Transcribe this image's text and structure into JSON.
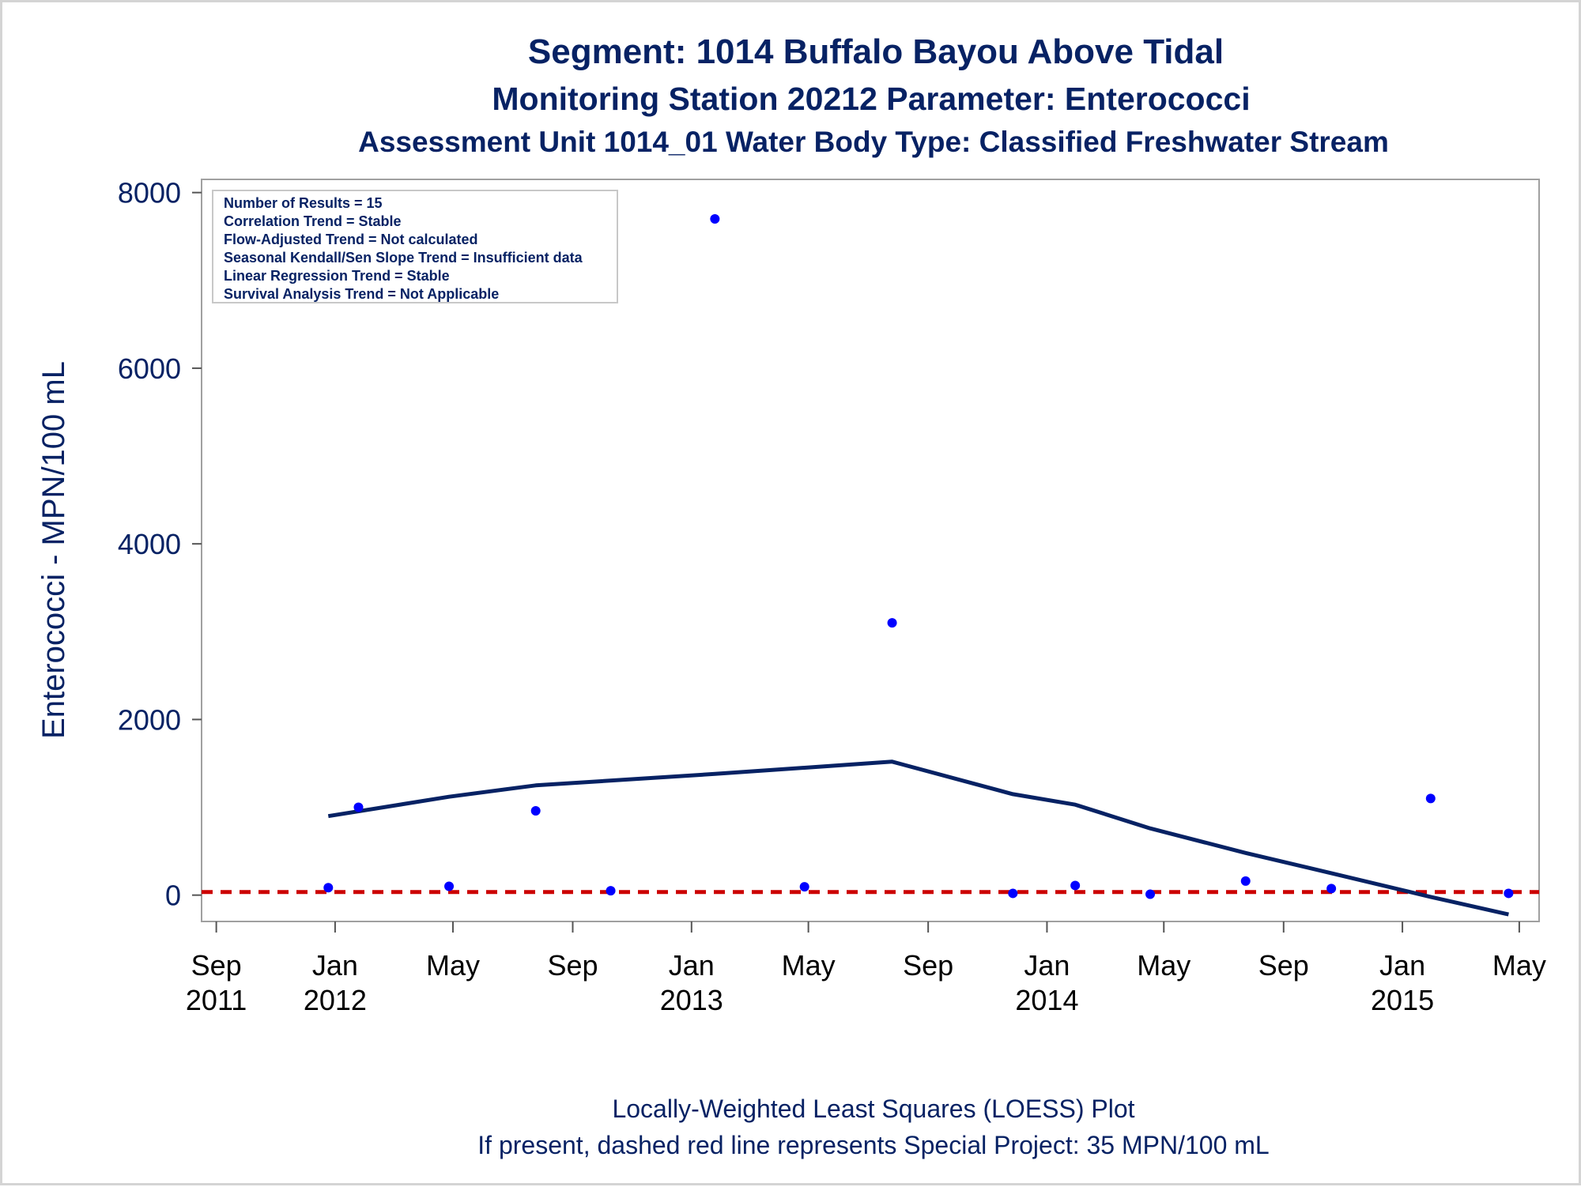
{
  "titles": {
    "line1": "Segment: 1014  Buffalo Bayou Above Tidal",
    "line2": "Monitoring Station 20212 Parameter: Enterococci",
    "line3": "Assessment Unit 1014_01   Water Body Type: Classified Freshwater Stream"
  },
  "stats_box": {
    "lines": [
      "Number of Results = 15",
      "Correlation Trend = Stable",
      "Flow-Adjusted Trend = Not calculated",
      "Seasonal Kendall/Sen Slope Trend = Insufficient data",
      "Linear Regression Trend = Stable",
      "Survival Analysis Trend = Not Applicable"
    ]
  },
  "footer": {
    "line1": "Locally-Weighted Least Squares (LOESS) Plot",
    "line2": "If present, dashed red line represents Special Project: 35 MPN/100 mL"
  },
  "colors": {
    "title": "#072264",
    "points": "#0000ff",
    "loess_line": "#072264",
    "reference_line": "#cc0000",
    "frame": "#a0a0a0"
  },
  "chart_data": {
    "type": "scatter",
    "title": "Segment: 1014  Buffalo Bayou Above Tidal",
    "ylabel": "Enterococci - MPN/100 mL",
    "xlabel": "",
    "x_type": "date",
    "xlim": [
      "2011-08-25",
      "2015-05-10"
    ],
    "ylim": [
      -300,
      8150
    ],
    "yticks": [
      0,
      2000,
      4000,
      6000,
      8000
    ],
    "xticks": [
      {
        "date": "2011-09-01",
        "line1": "Sep",
        "line2": "2011"
      },
      {
        "date": "2012-01-01",
        "line1": "Jan",
        "line2": "2012"
      },
      {
        "date": "2012-05-01",
        "line1": "May",
        "line2": ""
      },
      {
        "date": "2012-09-01",
        "line1": "Sep",
        "line2": ""
      },
      {
        "date": "2013-01-01",
        "line1": "Jan",
        "line2": "2013"
      },
      {
        "date": "2013-05-01",
        "line1": "May",
        "line2": ""
      },
      {
        "date": "2013-09-01",
        "line1": "Sep",
        "line2": ""
      },
      {
        "date": "2014-01-01",
        "line1": "Jan",
        "line2": "2014"
      },
      {
        "date": "2014-05-01",
        "line1": "May",
        "line2": ""
      },
      {
        "date": "2014-09-01",
        "line1": "Sep",
        "line2": ""
      },
      {
        "date": "2015-01-01",
        "line1": "Jan",
        "line2": "2015"
      },
      {
        "date": "2015-05-01",
        "line1": "May",
        "line2": ""
      }
    ],
    "grid": false,
    "series": [
      {
        "type": "scatter",
        "points": [
          {
            "x": "2011-12-25",
            "y": 85
          },
          {
            "x": "2012-01-25",
            "y": 1000
          },
          {
            "x": "2012-04-27",
            "y": 100
          },
          {
            "x": "2012-07-25",
            "y": 960
          },
          {
            "x": "2012-10-10",
            "y": 50
          },
          {
            "x": "2013-01-25",
            "y": 7700
          },
          {
            "x": "2013-04-27",
            "y": 95
          },
          {
            "x": "2013-07-26",
            "y": 3100
          },
          {
            "x": "2013-11-27",
            "y": 20
          },
          {
            "x": "2014-01-30",
            "y": 110
          },
          {
            "x": "2014-04-17",
            "y": 10
          },
          {
            "x": "2014-07-24",
            "y": 160
          },
          {
            "x": "2014-10-20",
            "y": 75
          },
          {
            "x": "2015-01-30",
            "y": 1100
          },
          {
            "x": "2015-04-20",
            "y": 20
          }
        ]
      },
      {
        "type": "line",
        "points": [
          {
            "x": "2011-12-25",
            "y": 900
          },
          {
            "x": "2012-04-27",
            "y": 1120
          },
          {
            "x": "2012-07-25",
            "y": 1250
          },
          {
            "x": "2013-01-25",
            "y": 1380
          },
          {
            "x": "2013-04-27",
            "y": 1450
          },
          {
            "x": "2013-07-26",
            "y": 1520
          },
          {
            "x": "2013-11-27",
            "y": 1150
          },
          {
            "x": "2014-01-30",
            "y": 1030
          },
          {
            "x": "2014-04-17",
            "y": 760
          },
          {
            "x": "2014-07-24",
            "y": 480
          },
          {
            "x": "2014-10-20",
            "y": 250
          },
          {
            "x": "2015-01-30",
            "y": -20
          },
          {
            "x": "2015-04-20",
            "y": -220
          }
        ]
      }
    ],
    "reference_lines": [
      {
        "y": 35,
        "style": "dashed"
      }
    ]
  }
}
